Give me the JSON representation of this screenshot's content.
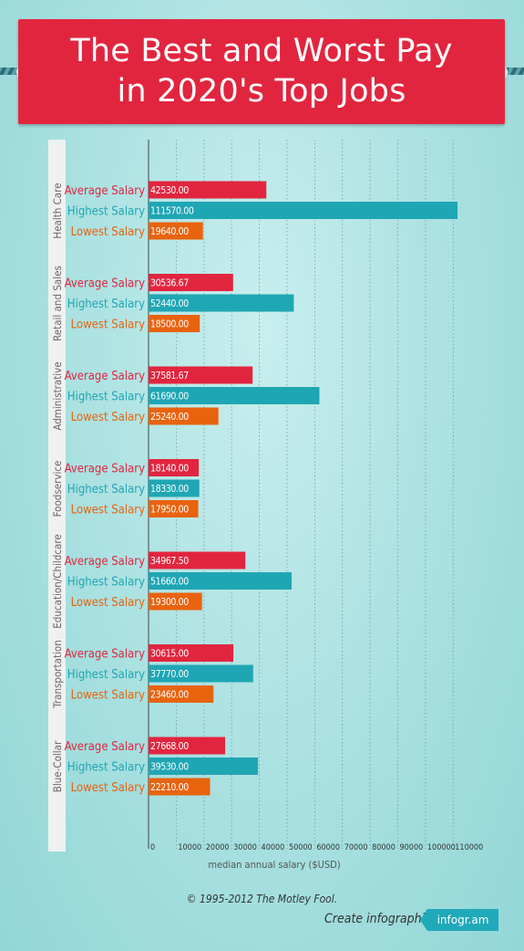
{
  "title": {
    "line1": "The Best and Worst Pay",
    "line2": "in 2020's Top Jobs"
  },
  "colors": {
    "average": "#e2253f",
    "highest": "#1fa6b4",
    "lowest": "#e8630e",
    "banner": "#e2253f"
  },
  "chart_data": {
    "type": "bar",
    "orientation": "horizontal",
    "xlabel": "median annual salary ($USD)",
    "xlim": [
      0,
      115000
    ],
    "xticks": [
      0,
      10000,
      20000,
      30000,
      40000,
      50000,
      60000,
      70000,
      80000,
      90000,
      100000,
      110000
    ],
    "xtick_labels": [
      "0",
      "10000",
      "20000",
      "30000",
      "40000",
      "50000",
      "60000",
      "70000",
      "80000",
      "90000",
      "100000",
      "110000"
    ],
    "grid": "vertical dotted",
    "series_names": [
      "Average Salary",
      "Highest Salary",
      "Lowest Salary"
    ],
    "groups": [
      {
        "category": "Health Care",
        "values": [
          42530,
          111570,
          19640
        ],
        "labels": [
          "42530.00",
          "111570.00",
          "19640.00"
        ]
      },
      {
        "category": "Retail and Sales",
        "values": [
          30536.67,
          52440,
          18500
        ],
        "labels": [
          "30536.67",
          "52440.00",
          "18500.00"
        ]
      },
      {
        "category": "Administrative",
        "values": [
          37581.67,
          61690,
          25240
        ],
        "labels": [
          "37581.67",
          "61690.00",
          "25240.00"
        ]
      },
      {
        "category": "Foodservice",
        "values": [
          18140,
          18330,
          17950
        ],
        "labels": [
          "18140.00",
          "18330.00",
          "17950.00"
        ]
      },
      {
        "category": "Education/Childcare",
        "values": [
          34967.5,
          51660,
          19300
        ],
        "labels": [
          "34967.50",
          "51660.00",
          "19300.00"
        ]
      },
      {
        "category": "Transportation",
        "values": [
          30615,
          37770,
          23460
        ],
        "labels": [
          "30615.00",
          "37770.00",
          "23460.00"
        ]
      },
      {
        "category": "Blue-Collar",
        "values": [
          27668,
          39530,
          22210
        ],
        "labels": [
          "27668.00",
          "39530.00",
          "22210.00"
        ]
      }
    ]
  },
  "footer": {
    "copyright": "© 1995-2012 The Motley Fool.",
    "create": "Create infographics",
    "logo": "infogr.am"
  }
}
